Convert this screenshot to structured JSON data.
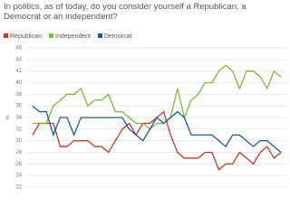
{
  "chart_data": {
    "type": "line",
    "title": "In politics, as of today, do you consider yourself a Republican, a Democrat or an independent?",
    "y_label": "%",
    "categories": [
      null,
      null,
      null,
      null,
      null,
      null,
      null,
      null,
      null,
      null,
      null,
      null,
      null,
      null,
      null,
      null,
      null,
      null,
      null,
      null,
      null,
      null,
      null,
      null,
      null,
      null,
      null,
      null,
      null,
      null,
      null,
      null,
      null,
      null,
      null,
      null,
      null
    ],
    "series": [
      {
        "name": "Republican",
        "color": "#c0392b",
        "values": [
          31,
          33,
          33,
          33,
          29,
          29,
          30,
          30,
          30,
          29,
          29,
          28,
          30,
          32,
          33,
          31,
          33,
          33,
          34,
          35,
          31,
          28,
          27,
          27,
          27,
          28,
          28,
          25,
          26,
          26,
          28,
          27,
          26,
          28,
          29,
          27,
          28
        ]
      },
      {
        "name": "Independent",
        "color": "#7cb83f",
        "values": [
          33,
          33,
          33,
          36,
          37,
          38,
          38,
          39,
          36,
          37,
          37,
          38,
          35,
          35,
          34,
          33,
          33,
          32,
          33,
          33,
          34,
          39,
          34,
          37,
          38,
          40,
          40,
          42,
          43,
          42,
          39,
          42,
          42,
          41,
          39,
          42,
          41
        ]
      },
      {
        "name": "Democrat",
        "color": "#1f5a8c",
        "values": [
          36,
          35,
          35,
          31,
          34,
          34,
          31,
          34,
          34,
          34,
          34,
          34,
          34,
          34,
          32,
          31,
          30,
          32,
          34,
          33,
          34,
          35,
          34,
          31,
          31,
          31,
          31,
          30,
          29,
          31,
          31,
          30,
          29,
          30,
          30,
          29,
          28
        ]
      }
    ],
    "ylim": [
      22,
      46
    ],
    "yticks": [
      22,
      24,
      26,
      28,
      30,
      32,
      34,
      36,
      38,
      40,
      42,
      44,
      46
    ],
    "grid": true
  }
}
